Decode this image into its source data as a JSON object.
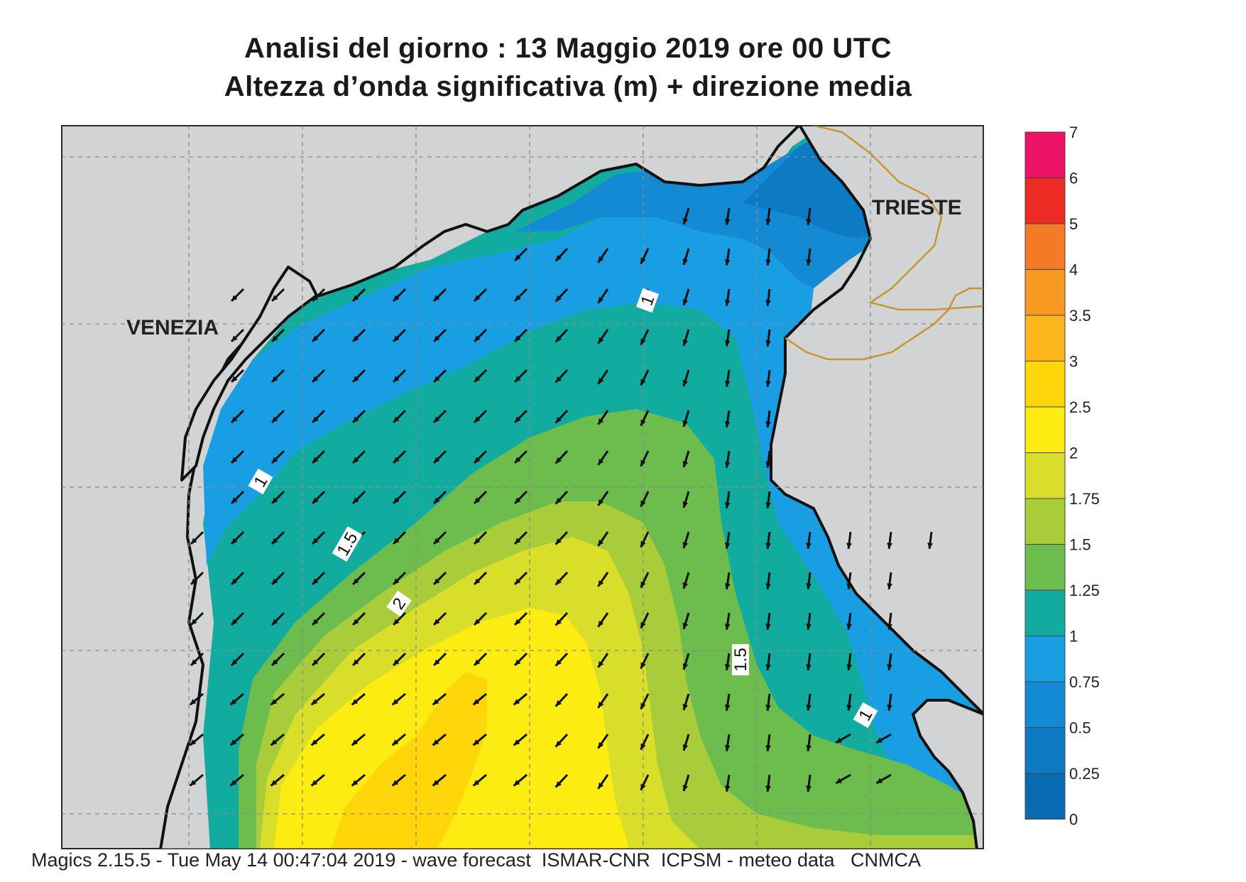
{
  "title_line1": "Analisi del giorno :  13   Maggio  2019   ore 00 UTC",
  "title_line2": "Altezza d’onda significativa (m) + direzione media",
  "footer": "Magics 2.15.5 - Tue May 14 00:47:04 2019 - wave forecast  ISMAR-CNR  ICPSM - meteo data   CNMCA",
  "map": {
    "cities": [
      {
        "name": "VENEZIA"
      },
      {
        "name": "TRIESTE"
      }
    ],
    "contour_labels": [
      "1",
      "1",
      "1.5",
      "2",
      "1.5",
      "1"
    ],
    "land_color": "#d2d3d5",
    "coast_color": "#111111",
    "border_color": "#c8962e"
  },
  "legend": {
    "title": "",
    "classes": [
      {
        "from": "0",
        "to": "0.25",
        "color": "#0a6ab2"
      },
      {
        "from": "0.25",
        "to": "0.5",
        "color": "#0d7ac4"
      },
      {
        "from": "0.5",
        "to": "0.75",
        "color": "#138ad3"
      },
      {
        "from": "0.75",
        "to": "1",
        "color": "#1a9ee3"
      },
      {
        "from": "1",
        "to": "1.25",
        "color": "#12ab9f"
      },
      {
        "from": "1.25",
        "to": "1.5",
        "color": "#6cbd4e"
      },
      {
        "from": "1.5",
        "to": "1.75",
        "color": "#a8cc3a"
      },
      {
        "from": "1.75",
        "to": "2",
        "color": "#d8de2a"
      },
      {
        "from": "2",
        "to": "2.5",
        "color": "#fdec12"
      },
      {
        "from": "2.5",
        "to": "3",
        "color": "#fed60a"
      },
      {
        "from": "3",
        "to": "3.5",
        "color": "#fdb71d"
      },
      {
        "from": "3.5",
        "to": "4",
        "color": "#f89a22"
      },
      {
        "from": "4",
        "to": "5",
        "color": "#f47a25"
      },
      {
        "from": "5",
        "to": "6",
        "color": "#ee2a24"
      },
      {
        "from": "6",
        "to": "7",
        "color": "#ed1265"
      }
    ],
    "tick_labels": [
      "0",
      "0.25",
      "0.5",
      "0.75",
      "1",
      "1.25",
      "1.5",
      "1.75",
      "2",
      "2.5",
      "3",
      "3.5",
      "4",
      "5",
      "6",
      "7"
    ]
  }
}
